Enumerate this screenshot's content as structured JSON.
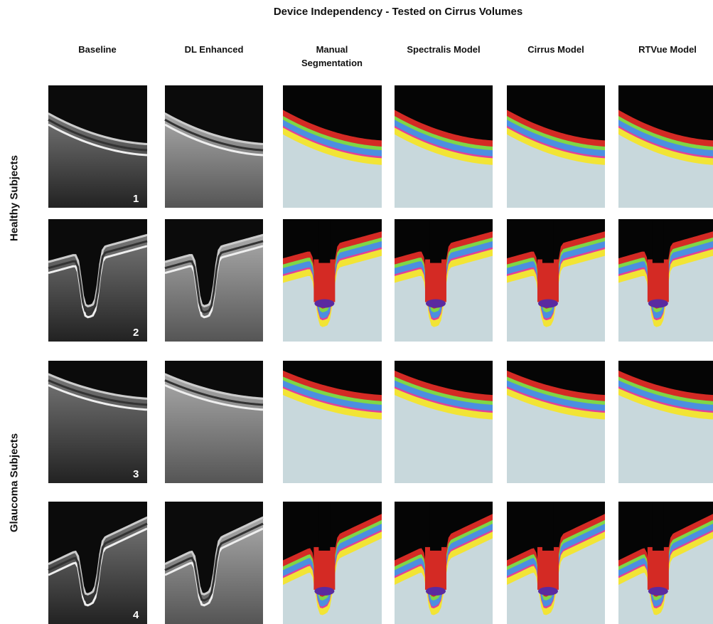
{
  "title": "Device Independency - Tested on Cirrus Volumes",
  "columns": [
    "Baseline",
    "DL Enhanced",
    "Manual Segmentation",
    "Spectralis Model",
    "Cirrus Model",
    "RTVue Model"
  ],
  "row_groups": [
    "Healthy Subjects",
    "Glaucoma Subjects"
  ],
  "panel_numbers": [
    "1",
    "2",
    "3",
    "4"
  ]
}
